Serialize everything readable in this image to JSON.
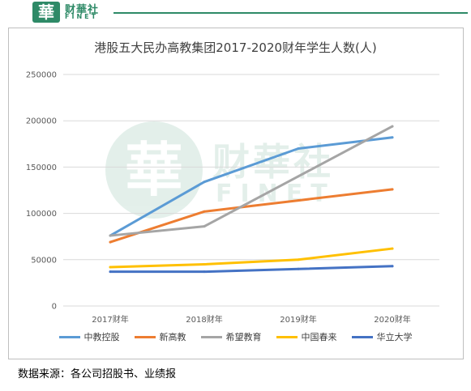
{
  "brand": {
    "badge": "華",
    "name": "财華社",
    "sub": "FINET"
  },
  "chart_data": {
    "type": "line",
    "title": "港股五大民办高教集团2017-2020财年学生人数(人)",
    "categories": [
      "2017财年",
      "2018财年",
      "2019财年",
      "2020财年"
    ],
    "ylim": [
      0,
      250000
    ],
    "yticks": [
      "0",
      "50000",
      "100000",
      "150000",
      "200000",
      "250000"
    ],
    "grid": true,
    "legend_position": "bottom",
    "series": [
      {
        "name": "中教控股",
        "color": "#5b9bd5",
        "values": [
          76000,
          134000,
          170000,
          182000
        ]
      },
      {
        "name": "新高教",
        "color": "#ed7d31",
        "values": [
          69000,
          102000,
          114000,
          126000
        ]
      },
      {
        "name": "希望教育",
        "color": "#a5a5a5",
        "values": [
          76000,
          86000,
          140000,
          194000
        ]
      },
      {
        "name": "中国春来",
        "color": "#ffc000",
        "values": [
          42000,
          45000,
          50000,
          62000
        ]
      },
      {
        "name": "华立大学",
        "color": "#4472c4",
        "values": [
          37000,
          37000,
          40000,
          43000
        ]
      }
    ]
  },
  "source_note": "数据来源：各公司招股书、业绩报"
}
